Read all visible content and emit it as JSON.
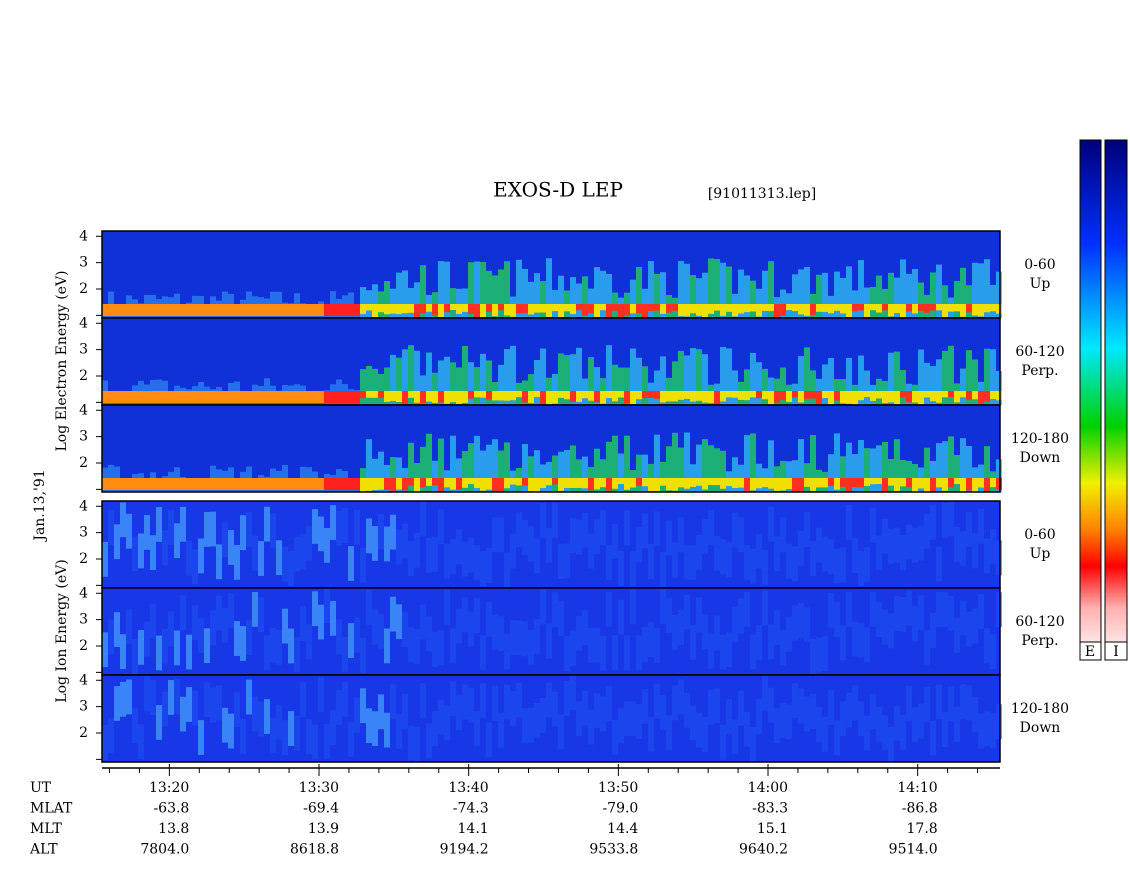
{
  "chart_data": {
    "type": "spectrogram",
    "title": "EXOS-D LEP",
    "file_label": "[91011313.lep]",
    "date_label": "Jan.13,'91",
    "xlim": [
      795.5,
      855.5
    ],
    "xticks": [
      {
        "value": 800,
        "label": "13:20"
      },
      {
        "value": 810,
        "label": "13:30"
      },
      {
        "value": 820,
        "label": "13:40"
      },
      {
        "value": 830,
        "label": "13:50"
      },
      {
        "value": 840,
        "label": "14:00"
      },
      {
        "value": 850,
        "label": "14:10"
      }
    ],
    "xminor_ticks": [
      796,
      798,
      802,
      804,
      806,
      808,
      812,
      814,
      816,
      818,
      822,
      824,
      826,
      828,
      832,
      834,
      836,
      838,
      842,
      844,
      846,
      848,
      852,
      854
    ],
    "ylim": [
      0.9,
      4.2
    ],
    "yticks": [
      2,
      3,
      4
    ],
    "ytick_marks": [
      1,
      2,
      3,
      4
    ],
    "groups": [
      {
        "ylabel": "Log Electron Energy (eV)",
        "panels": [
          {
            "angle": "0-60",
            "direction": "Up"
          },
          {
            "angle": "60-120",
            "direction": "Perp."
          },
          {
            "angle": "120-180",
            "direction": "Down"
          }
        ]
      },
      {
        "ylabel": "Log Ion Energy (eV)",
        "panels": [
          {
            "angle": "0-60",
            "direction": "Up"
          },
          {
            "angle": "60-120",
            "direction": "Perp."
          },
          {
            "angle": "120-180",
            "direction": "Down"
          }
        ]
      }
    ],
    "colorbar_labels": [
      "E",
      "I"
    ],
    "footer": [
      {
        "name": "UT"
      },
      {
        "name": "MLAT",
        "values": [
          "-63.8",
          "-69.4",
          "-74.3",
          "-79.0",
          "-83.3",
          "-86.8"
        ]
      },
      {
        "name": "MLT",
        "values": [
          "13.8",
          "13.9",
          "14.1",
          "14.4",
          "15.1",
          "17.8"
        ]
      },
      {
        "name": "ALT",
        "values": [
          "7804.0",
          "8618.8",
          "9194.2",
          "9533.8",
          "9640.2",
          "9514.0"
        ]
      }
    ]
  }
}
